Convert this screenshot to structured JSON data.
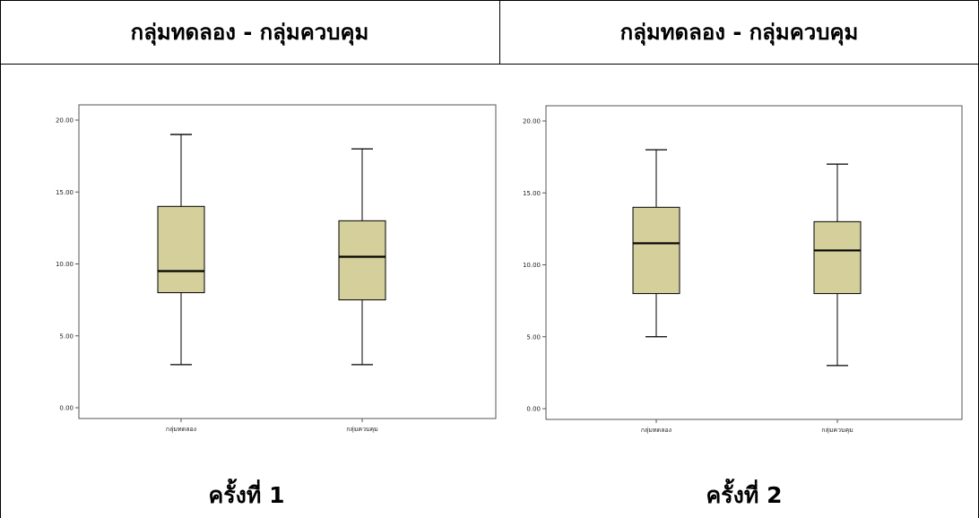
{
  "header": {
    "left_title": "กลุ่มทดลอง - กลุ่มควบคุม",
    "right_title": "กลุ่มทดลอง - กลุ่มควบคุม"
  },
  "captions": [
    "ครั้งที่ 1",
    "ครั้งที่ 2"
  ],
  "colors": {
    "box_fill": "#d4cf9b",
    "stroke": "#000000",
    "frame": "#555555"
  },
  "chart_data": [
    {
      "type": "boxplot",
      "categories": [
        "กลุ่มทดลอง",
        "กลุ่มควบคุม"
      ],
      "ylim": [
        0,
        20
      ],
      "yticks": [
        "0.00",
        "5.00",
        "10.00",
        "15.00",
        "20.00"
      ],
      "series": [
        {
          "min": 3,
          "q1": 8,
          "median": 9.5,
          "q3": 14,
          "max": 19
        },
        {
          "min": 3,
          "q1": 7.5,
          "median": 10.5,
          "q3": 13,
          "max": 18
        }
      ],
      "grid": false
    },
    {
      "type": "boxplot",
      "categories": [
        "กลุ่มทดลอง",
        "กลุ่มควบคุม"
      ],
      "ylim": [
        0,
        20
      ],
      "yticks": [
        "0.00",
        "5.00",
        "10.00",
        "15.00",
        "20.00"
      ],
      "series": [
        {
          "min": 5,
          "q1": 8,
          "median": 11.5,
          "q3": 14,
          "max": 18
        },
        {
          "min": 3,
          "q1": 8,
          "median": 11,
          "q3": 13,
          "max": 17
        }
      ],
      "grid": false
    }
  ]
}
